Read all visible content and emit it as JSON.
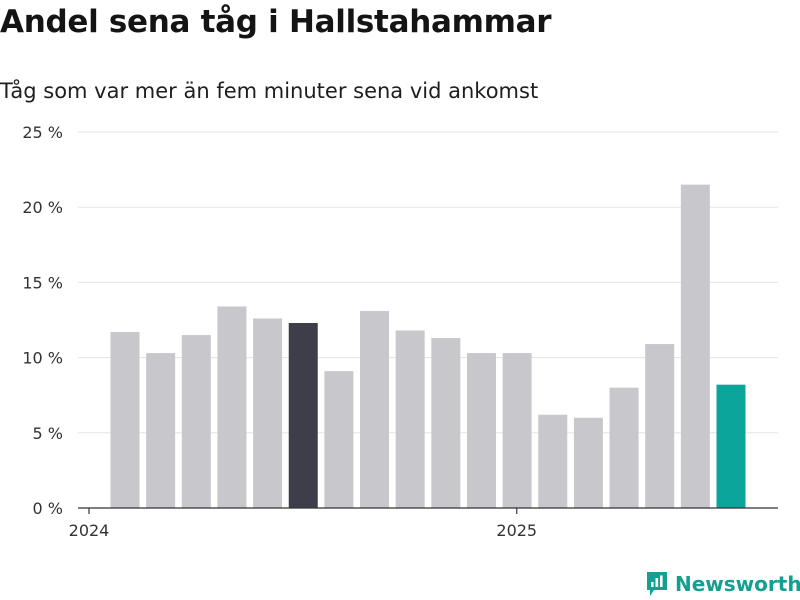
{
  "title": "Andel sena tåg i Hallstahammar",
  "subtitle": "Tåg som var mer än fem minuter sena vid ankomst",
  "brand": {
    "name": "Newsworthy",
    "icon": "newsworthy-logo-icon",
    "color": "#14a090"
  },
  "chart_data": {
    "type": "bar",
    "title": "Andel sena tåg i Hallstahammar",
    "subtitle": "Tåg som var mer än fem minuter sena vid ankomst",
    "ylim": [
      0,
      25
    ],
    "y_ticks": [
      0,
      5,
      10,
      15,
      20,
      25
    ],
    "y_tick_labels": [
      "0 %",
      "5 %",
      "10 %",
      "15 %",
      "20 %",
      "25 %"
    ],
    "x_tick_labels": [
      {
        "label": "2024",
        "index": 0
      },
      {
        "label": "2025",
        "index": 12
      }
    ],
    "grid": true,
    "colors": {
      "default": "#c8c7cc",
      "highlight_dark": "#3e3d4a",
      "highlight_accent": "#0ca59b",
      "grid": "#e3e3e3",
      "axis": "#333333"
    },
    "values": [
      11.7,
      10.3,
      11.5,
      13.4,
      12.6,
      12.3,
      9.1,
      13.1,
      11.8,
      11.3,
      10.3,
      10.3,
      6.2,
      6.0,
      8.0,
      10.9,
      21.5,
      8.2
    ],
    "highlight": {
      "5": "dark",
      "17": "accent"
    }
  }
}
